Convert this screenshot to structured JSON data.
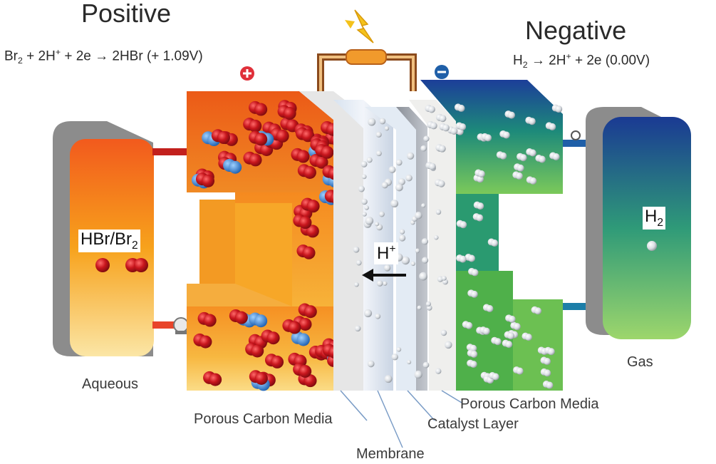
{
  "labels": {
    "positive": "Positive",
    "negative": "Negative",
    "eq_left_pre": "Br",
    "eq_left_sub": "2",
    "eq_left_mid": " + 2H",
    "eq_left_sup": "+",
    "eq_left_post": " + 2e → 2HBr   (+ 1.09V)",
    "eq_right_pre": "H",
    "eq_right_sub": "2",
    "eq_right_mid": " → 2H",
    "eq_right_sup": "+",
    "eq_right_post": " + 2e   (0.00V)",
    "tank_left_main": "HBr/Br",
    "tank_left_sub": "2",
    "tank_right_main": "H",
    "tank_right_sub": "2",
    "proton": "H",
    "proton_sup": "+",
    "aqueous": "Aqueous",
    "gas": "Gas",
    "pcm_left": "Porous Carbon Media",
    "pcm_right": "Porous Carbon Media",
    "catalyst": "Catalyst Layer",
    "membrane": "Membrane"
  },
  "colors": {
    "positive_top": "#e84e1b",
    "positive_bottom": "#f6a623",
    "negative_top": "#1e3f96",
    "negative_bottom": "#5bb947",
    "tank_shadow": "#8c8c8c",
    "pole_positive": "#e0303a",
    "pole_negative": "#1f5fa8"
  },
  "icons": [
    "plus-terminal-icon",
    "minus-terminal-icon",
    "lightning-bolt-icon",
    "pump-icon",
    "valve-icon",
    "arrow-left-icon"
  ]
}
